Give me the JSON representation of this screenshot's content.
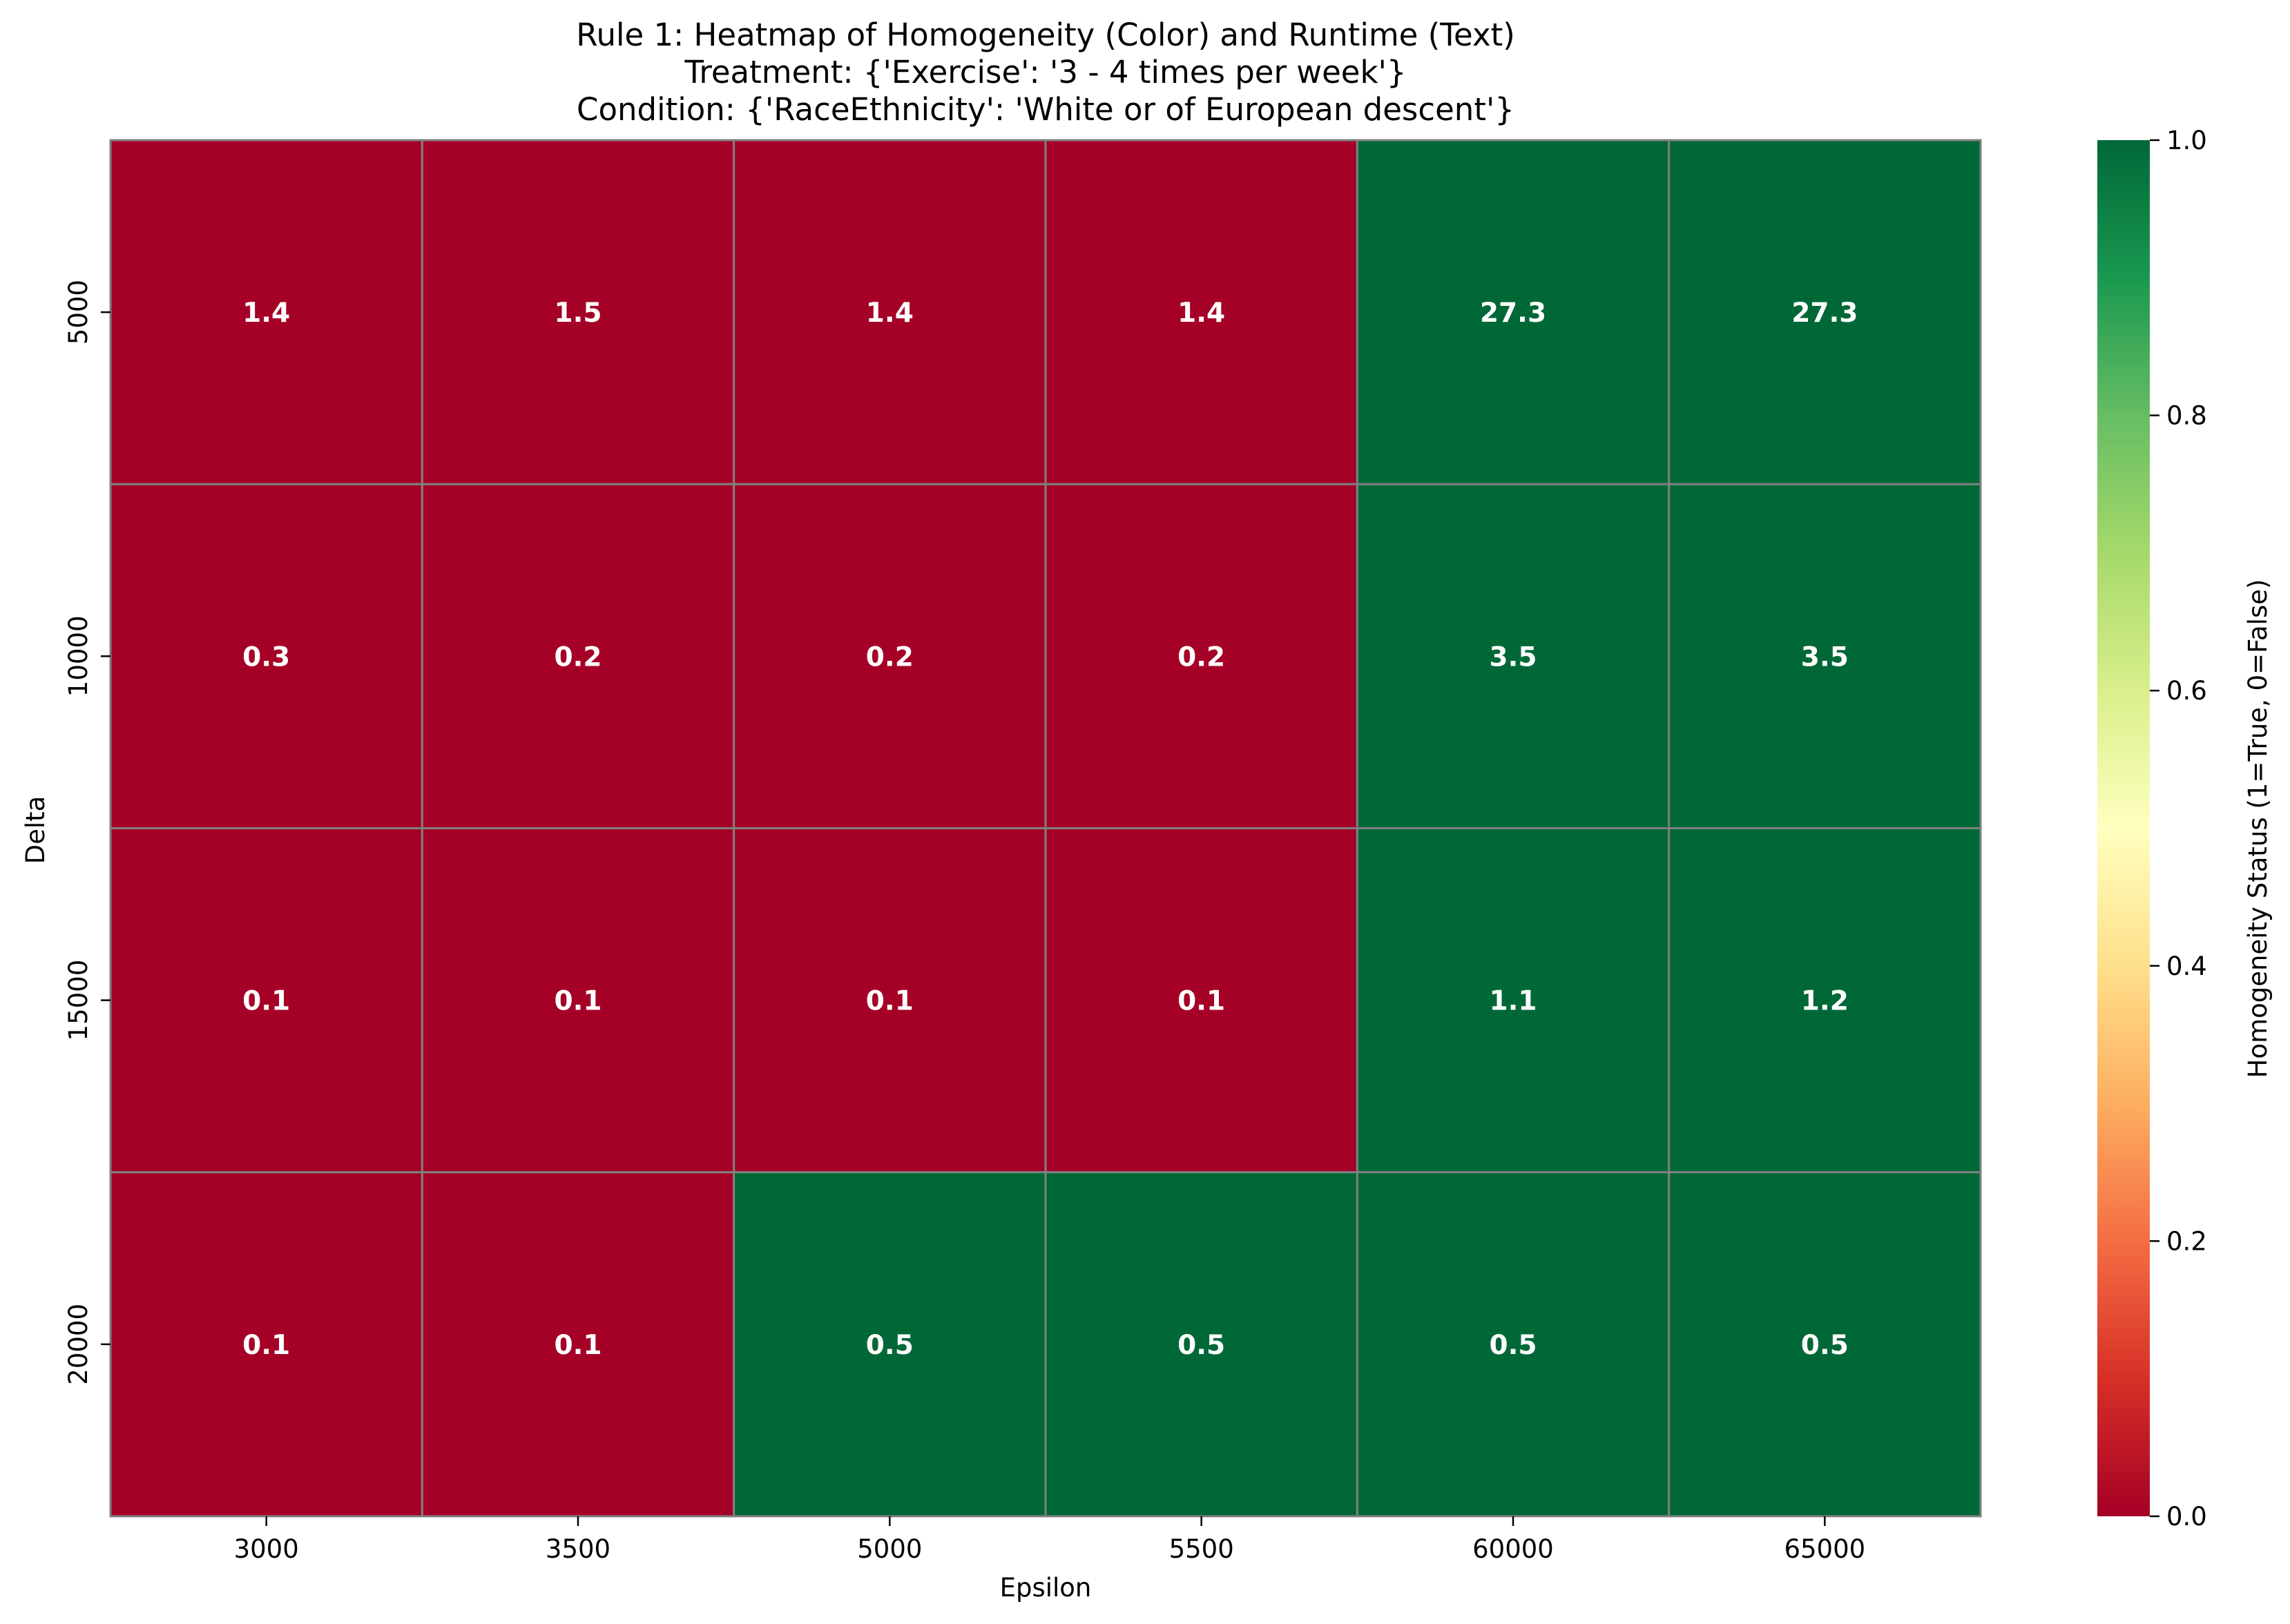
{
  "chart_data": {
    "type": "heatmap",
    "title_lines": [
      "Rule 1: Heatmap of Homogeneity (Color) and Runtime (Text)",
      "Treatment: {'Exercise': '3 - 4 times per week'}",
      "Condition: {'RaceEthnicity': 'White or of European descent'}"
    ],
    "xlabel": "Epsilon",
    "ylabel": "Delta",
    "x_categories": [
      "3000",
      "3500",
      "5000",
      "5500",
      "60000",
      "65000"
    ],
    "y_categories": [
      "5000",
      "10000",
      "15000",
      "20000"
    ],
    "homogeneity": [
      [
        0,
        0,
        0,
        0,
        1,
        1
      ],
      [
        0,
        0,
        0,
        0,
        1,
        1
      ],
      [
        0,
        0,
        0,
        0,
        1,
        1
      ],
      [
        0,
        0,
        1,
        1,
        1,
        1
      ]
    ],
    "runtime_labels": [
      [
        "1.4",
        "1.5",
        "1.4",
        "1.4",
        "27.3",
        "27.3"
      ],
      [
        "0.3",
        "0.2",
        "0.2",
        "0.2",
        "3.5",
        "3.5"
      ],
      [
        "0.1",
        "0.1",
        "0.1",
        "0.1",
        "1.1",
        "1.2"
      ],
      [
        "0.1",
        "0.1",
        "0.5",
        "0.5",
        "0.5",
        "0.5"
      ]
    ],
    "colorbar": {
      "label": "Homogeneity Status (1=True, 0=False)",
      "range": [
        0,
        1
      ],
      "ticks": [
        "0.0",
        "0.2",
        "0.4",
        "0.6",
        "0.8",
        "1.0"
      ],
      "colormap": "RdYlGn",
      "colormap_stops": [
        "#a50026",
        "#d73027",
        "#f46d43",
        "#fdae61",
        "#fee08b",
        "#ffffbf",
        "#d9ef8b",
        "#a6d96a",
        "#66bd63",
        "#1a9850",
        "#006837"
      ]
    },
    "colors": {
      "false": "#a50026",
      "true": "#006837",
      "gridline": "#808080"
    },
    "grid": true,
    "legend": "colorbar-right"
  }
}
